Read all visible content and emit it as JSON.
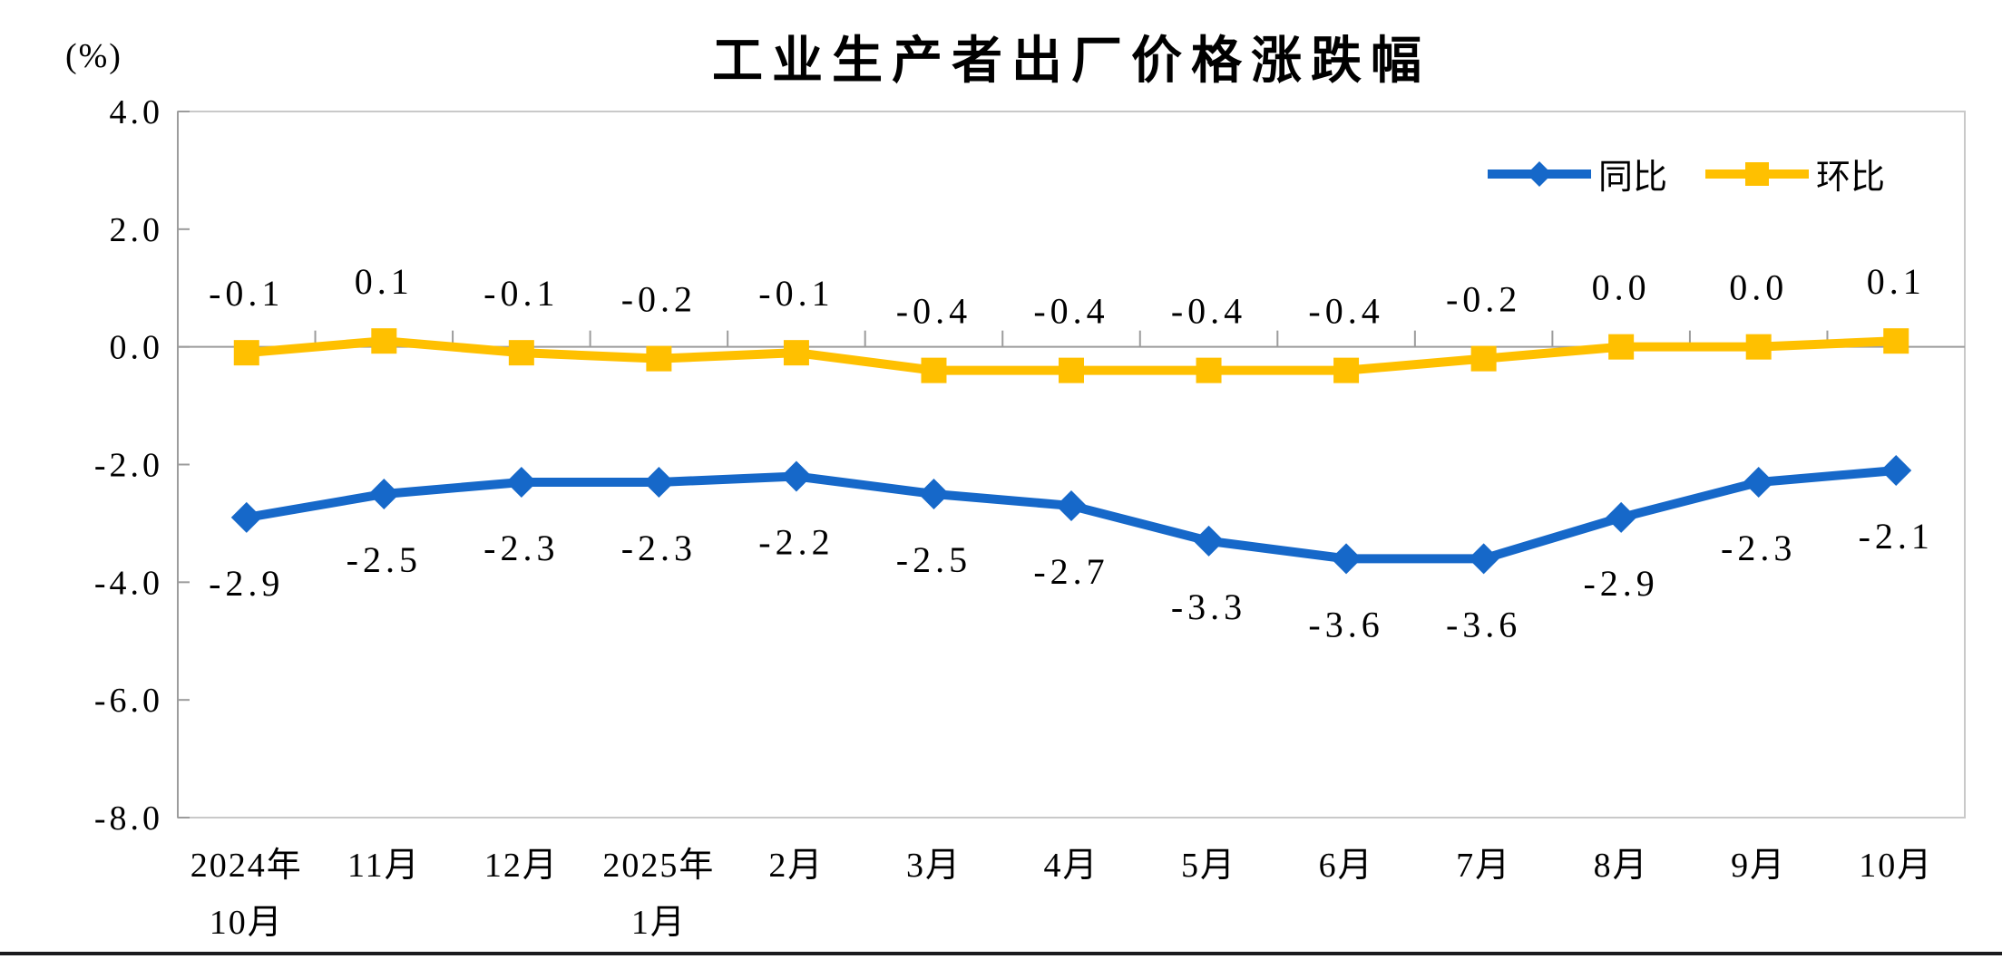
{
  "chart_data": {
    "type": "line",
    "title": "工业生产者出厂价格涨跌幅",
    "unit_label": "(%)",
    "ylabel": "(%)",
    "xlabel": "",
    "categories": [
      "2024年\n10月",
      "11月",
      "12月",
      "2025年\n1月",
      "2月",
      "3月",
      "4月",
      "5月",
      "6月",
      "7月",
      "8月",
      "9月",
      "10月"
    ],
    "y_ticks": [
      "4.0",
      "2.0",
      "0.0",
      "-2.0",
      "-4.0",
      "-6.0",
      "-8.0"
    ],
    "ylim": [
      -8.0,
      4.0
    ],
    "y_step": 2.0,
    "grid": false,
    "legend_position": "top-right",
    "series": [
      {
        "name": "同比",
        "marker": "diamond",
        "color": "#1668C9",
        "label_position": "below",
        "values": [
          -2.9,
          -2.5,
          -2.3,
          -2.3,
          -2.2,
          -2.5,
          -2.7,
          -3.3,
          -3.6,
          -3.6,
          -2.9,
          -2.3,
          -2.1
        ],
        "labels": [
          "-2.9",
          "-2.5",
          "-2.3",
          "-2.3",
          "-2.2",
          "-2.5",
          "-2.7",
          "-3.3",
          "-3.6",
          "-3.6",
          "-2.9",
          "-2.3",
          "-2.1"
        ]
      },
      {
        "name": "环比",
        "marker": "square",
        "color": "#FFC000",
        "label_position": "above",
        "values": [
          -0.1,
          0.1,
          -0.1,
          -0.2,
          -0.1,
          -0.4,
          -0.4,
          -0.4,
          -0.4,
          -0.2,
          0.0,
          0.0,
          0.1
        ],
        "labels": [
          "-0.1",
          "0.1",
          "-0.1",
          "-0.2",
          "-0.1",
          "-0.4",
          "-0.4",
          "-0.4",
          "-0.4",
          "-0.2",
          "0.0",
          "0.0",
          "0.1"
        ]
      }
    ],
    "axis_color": "#9C9C9C",
    "border_color": "#C9C9C9"
  }
}
